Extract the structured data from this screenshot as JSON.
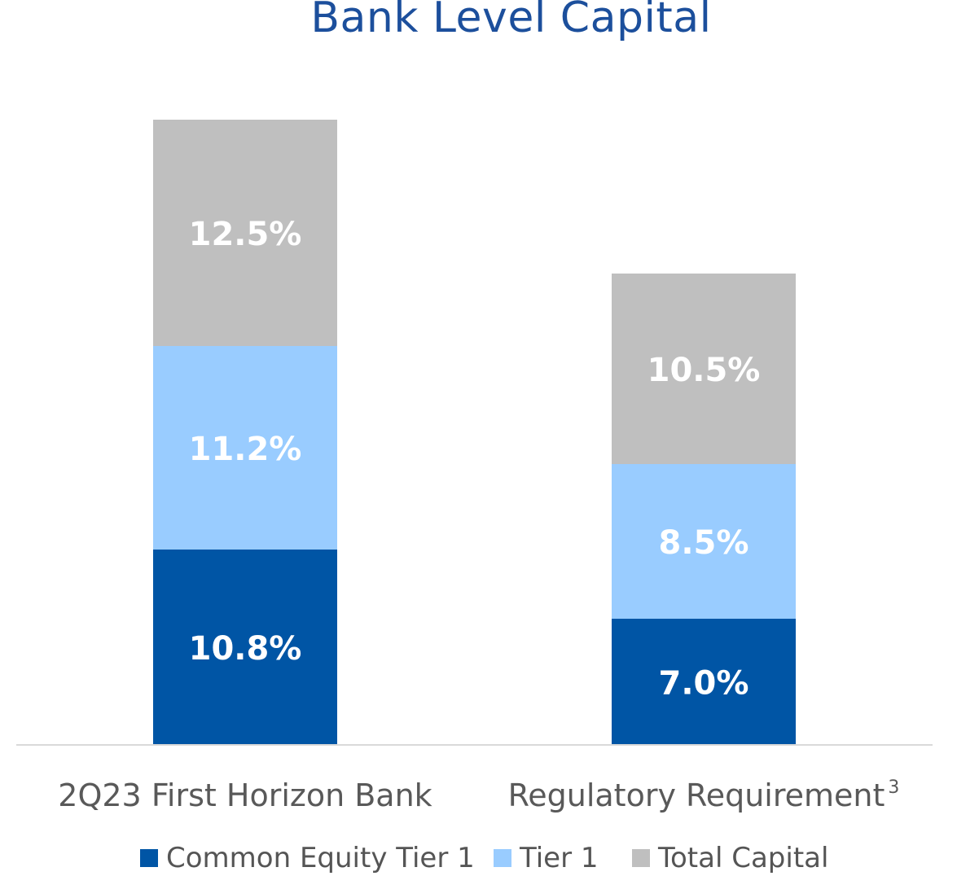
{
  "chart_data": {
    "type": "bar",
    "title": "Bank Level Capital",
    "categories": [
      "2Q23 First Horizon Bank",
      "Regulatory Requirement"
    ],
    "category_superscripts": [
      "",
      "3"
    ],
    "series": [
      {
        "name": "Common Equity Tier 1",
        "values": [
          10.8,
          7.0
        ],
        "labels": [
          "10.8%",
          "7.0%"
        ],
        "color": "#0055a5"
      },
      {
        "name": "Tier 1",
        "values": [
          11.2,
          8.5
        ],
        "labels": [
          "11.2%",
          "8.5%"
        ],
        "color": "#99ccff"
      },
      {
        "name": "Total Capital",
        "values": [
          12.5,
          10.5
        ],
        "labels": [
          "12.5%",
          "10.5%"
        ],
        "color": "#bfbfbf"
      }
    ],
    "legend_position": "bottom",
    "grid": false,
    "stacked_display": "segments ordered bottom to top; segment heights do not follow a single numeric scale"
  },
  "colors": {
    "title": "#1c4f9c",
    "axis_line": "#d9d9d9",
    "label_text": "#ffffff",
    "category_text": "#595959"
  }
}
